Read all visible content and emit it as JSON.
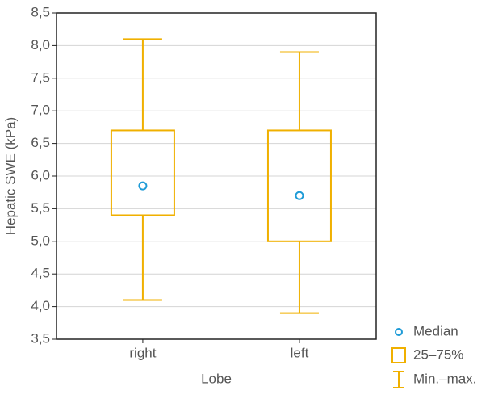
{
  "chart_data": {
    "type": "box",
    "x_label": "Lobe",
    "y_label": "Hepatic SWE (kPa)",
    "categories": [
      "right",
      "left"
    ],
    "min": [
      4.1,
      3.9
    ],
    "q1": [
      5.4,
      5.0
    ],
    "median": [
      5.85,
      5.7
    ],
    "q3": [
      6.7,
      6.7
    ],
    "max": [
      8.1,
      7.9
    ],
    "box_color": "#f0b000",
    "median_color": "#1e9bd7",
    "legend": {
      "median": "Median",
      "box": "25–75%",
      "whisker": "Min.–max."
    },
    "ylim": [
      3.5,
      8.5
    ],
    "yticks": [
      {
        "value": 3.5,
        "label": "3,5"
      },
      {
        "value": 4.0,
        "label": "4,0"
      },
      {
        "value": 4.5,
        "label": "4,5"
      },
      {
        "value": 5.0,
        "label": "5,0"
      },
      {
        "value": 5.5,
        "label": "5,5"
      },
      {
        "value": 6.0,
        "label": "6,0"
      },
      {
        "value": 6.5,
        "label": "6,5"
      },
      {
        "value": 7.0,
        "label": "7,0"
      },
      {
        "value": 7.5,
        "label": "7,5"
      },
      {
        "value": 8.0,
        "label": "8,0"
      },
      {
        "value": 8.5,
        "label": "8,5"
      }
    ],
    "grid": true
  }
}
